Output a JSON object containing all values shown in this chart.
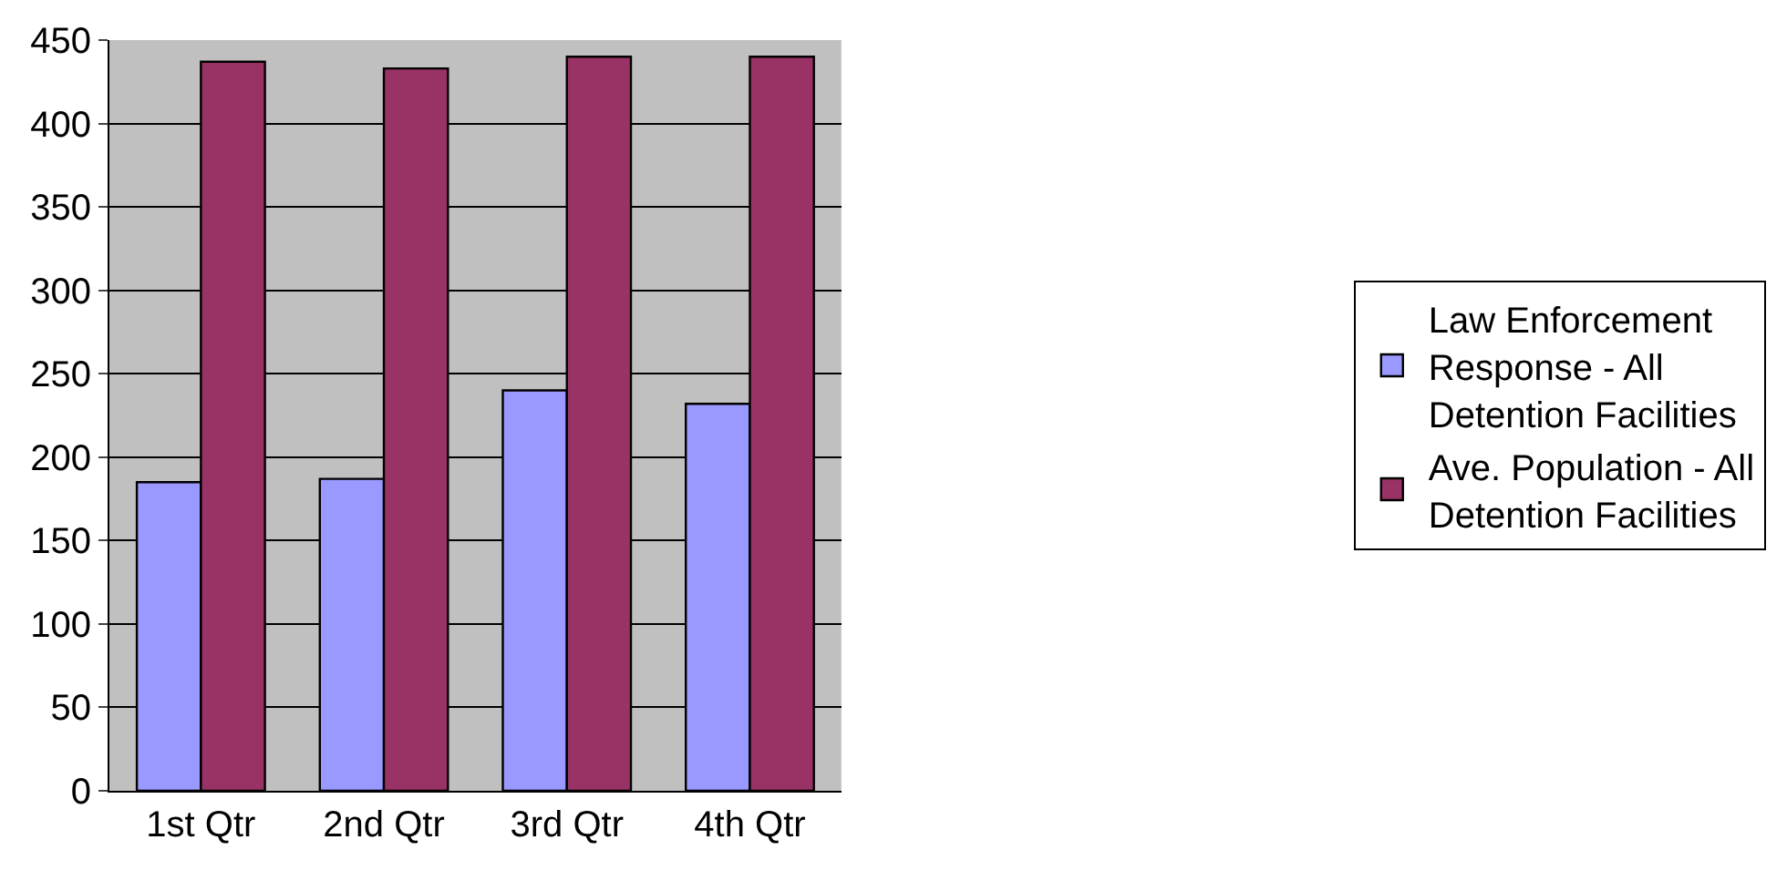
{
  "chart_data": {
    "type": "bar",
    "categories": [
      "1st Qtr",
      "2nd Qtr",
      "3rd Qtr",
      "4th Qtr"
    ],
    "series": [
      {
        "name": "Law Enforcement Response - All Detention Facilities",
        "color": "#9999ff",
        "values": [
          185,
          187,
          240,
          232
        ]
      },
      {
        "name": "Ave. Population - All Detention Facilities",
        "color": "#993366",
        "values": [
          437,
          433,
          440,
          440
        ]
      }
    ],
    "ylim": [
      0,
      450
    ],
    "yticks": [
      0,
      50,
      100,
      150,
      200,
      250,
      300,
      350,
      400,
      450
    ],
    "grid": "y",
    "legend": "right"
  }
}
